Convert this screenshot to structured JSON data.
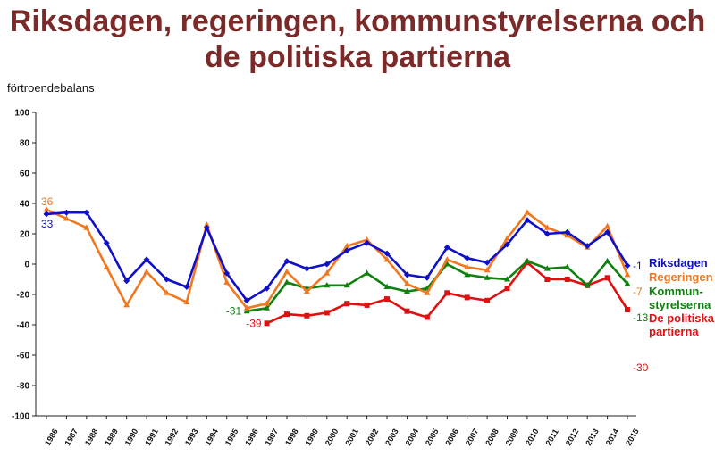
{
  "title_line1": "Riksdagen, regeringen, kommunstyrelserna och",
  "title_line2": "de politiska partierna",
  "chart_data": {
    "type": "line",
    "ylabel": "förtroendebalans",
    "ylim": [
      -100,
      100
    ],
    "yticks": [
      100,
      80,
      60,
      40,
      20,
      0,
      -20,
      -40,
      -60,
      -80,
      -100
    ],
    "x": [
      1986,
      1987,
      1988,
      1989,
      1990,
      1991,
      1992,
      1993,
      1994,
      1995,
      1996,
      1997,
      1998,
      1999,
      2000,
      2001,
      2002,
      2003,
      2004,
      2005,
      2006,
      2007,
      2008,
      2009,
      2010,
      2011,
      2012,
      2013,
      2014,
      2015
    ],
    "grid": false,
    "series": [
      {
        "name": "Riksdagen",
        "color": "#1010c8",
        "marker": "diamond",
        "values": [
          33,
          34,
          34,
          14,
          -11,
          3,
          -10,
          -15,
          24,
          -6,
          -24,
          -16,
          2,
          -3,
          0,
          9,
          14,
          7,
          -7,
          -9,
          11,
          4,
          1,
          13,
          29,
          20,
          21,
          12,
          21,
          -1
        ],
        "start_label": "33",
        "end_label": "-1",
        "legend_lines": [
          "Riksdagen"
        ]
      },
      {
        "name": "Regeringen",
        "color": "#f07820",
        "marker": "triangle",
        "values": [
          36,
          30,
          24,
          -2,
          -27,
          -5,
          -19,
          -25,
          26,
          -12,
          -29,
          -26,
          -5,
          -18,
          -6,
          12,
          16,
          3,
          -13,
          -19,
          3,
          -2,
          -4,
          17,
          34,
          24,
          19,
          11,
          25,
          -7
        ],
        "start_label": "36",
        "end_label": "-7",
        "legend_lines": [
          "Regeringen"
        ]
      },
      {
        "name": "Kommunstyrelserna",
        "color": "#108010",
        "marker": "triangle",
        "x": [
          1996,
          1997,
          1998,
          1999,
          2000,
          2001,
          2002,
          2003,
          2004,
          2005,
          2006,
          2007,
          2008,
          2009,
          2010,
          2011,
          2012,
          2013,
          2014,
          2015
        ],
        "values": [
          -31,
          -29,
          -12,
          -16,
          -14,
          -14,
          -6,
          -15,
          -18,
          -16,
          0,
          -7,
          -9,
          -10,
          2,
          -3,
          -2,
          -14,
          2,
          -13
        ],
        "start_label": "-31",
        "end_label": "-13",
        "legend_lines": [
          "Kommun-",
          "styrelserna"
        ]
      },
      {
        "name": "De politiska partierna",
        "color": "#e01010",
        "marker": "square",
        "x": [
          1997,
          1998,
          1999,
          2000,
          2001,
          2002,
          2003,
          2004,
          2005,
          2006,
          2007,
          2008,
          2009,
          2010,
          2011,
          2012,
          2013,
          2014,
          2015
        ],
        "values": [
          -39,
          -33,
          -34,
          -32,
          -26,
          -27,
          -23,
          -31,
          -35,
          -19,
          -22,
          -24,
          -16,
          1,
          -10,
          -10,
          -14,
          -9,
          -30
        ],
        "start_label": "-39",
        "end_label": "-30",
        "legend_lines": [
          "De politiska",
          "partierna"
        ]
      }
    ]
  }
}
